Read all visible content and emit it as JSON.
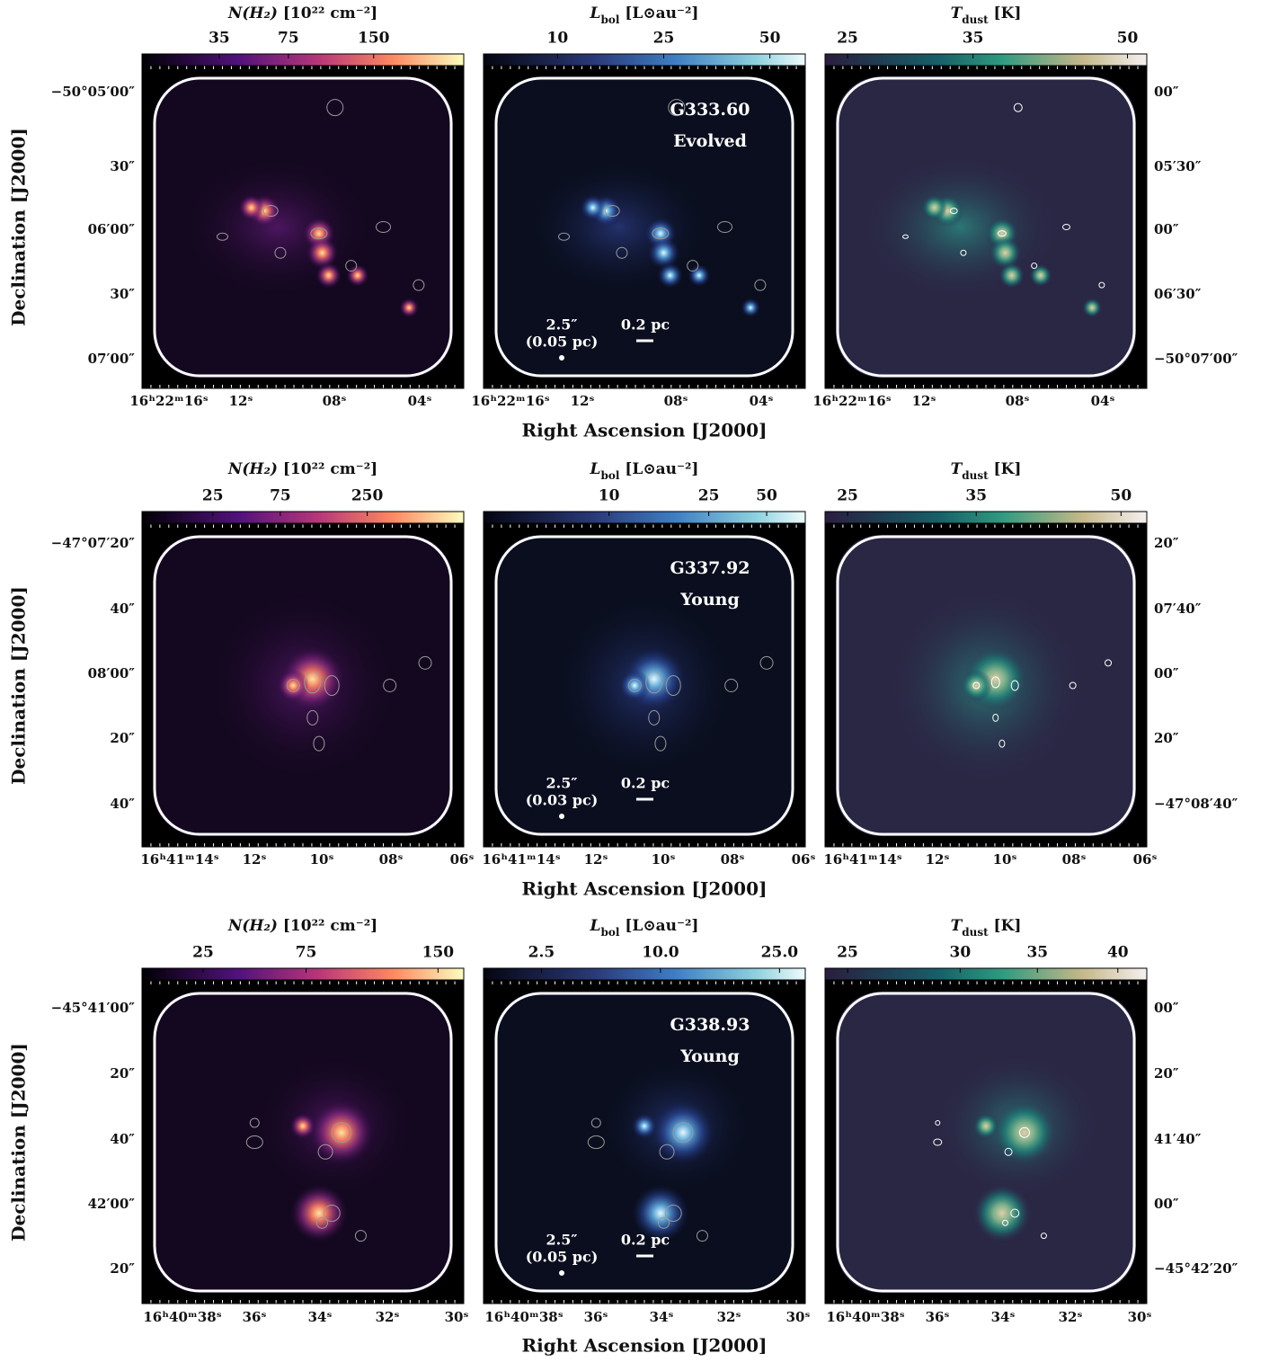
{
  "rows": [
    {
      "colorbars": [
        {
          "symbol": "N(H₂)",
          "unit": " [10²² cm⁻²]",
          "ticks": [
            "35",
            "75",
            "150"
          ]
        },
        {
          "symbol": "L",
          "sub": "bol",
          "unit": " [L⊙au⁻²]",
          "ticks": [
            "10",
            "25",
            "50"
          ]
        },
        {
          "symbol": "T",
          "sub": "dust",
          "unit": " [K]",
          "ticks": [
            "25",
            "35",
            "50"
          ]
        }
      ],
      "ra_ticks": [
        "16ʰ22ᵐ16ˢ",
        "12ˢ",
        "08ˢ",
        "04ˢ"
      ],
      "dec_left": [
        "−50°05′00″",
        "30″",
        "06′00″",
        "30″",
        "07′00″"
      ],
      "dec_right": [
        "00″",
        "05′30″",
        "00″",
        "06′30″",
        "−50°07′00″"
      ],
      "field": "G333.60",
      "stage": "Evolved",
      "scale_bar": "0.2 pc",
      "beam": "2.5″",
      "beam_size": "(0.05 pc)",
      "x_title": "Right Ascension [J2000]",
      "y_title": "Declination [J2000]"
    },
    {
      "colorbars": [
        {
          "symbol": "N(H₂)",
          "unit": " [10²² cm⁻²]",
          "ticks": [
            "25",
            "75",
            "250"
          ]
        },
        {
          "symbol": "L",
          "sub": "bol",
          "unit": " [L⊙au⁻²]",
          "ticks": [
            "10",
            "25",
            "50"
          ]
        },
        {
          "symbol": "T",
          "sub": "dust",
          "unit": " [K]",
          "ticks": [
            "25",
            "35",
            "50"
          ]
        }
      ],
      "ra_ticks": [
        "16ʰ41ᵐ14ˢ",
        "12ˢ",
        "10ˢ",
        "08ˢ",
        "06ˢ"
      ],
      "dec_left": [
        "−47°07′20″",
        "40″",
        "08′00″",
        "20″",
        "40″"
      ],
      "dec_right": [
        "20″",
        "07′40″",
        "00″",
        "20″",
        "−47°08′40″"
      ],
      "field": "G337.92",
      "stage": "Young",
      "scale_bar": "0.2 pc",
      "beam": "2.5″",
      "beam_size": "(0.03 pc)",
      "x_title": "Right Ascension [J2000]",
      "y_title": "Declination [J2000]"
    },
    {
      "colorbars": [
        {
          "symbol": "N(H₂)",
          "unit": " [10²² cm⁻²]",
          "ticks": [
            "25",
            "75",
            "150"
          ]
        },
        {
          "symbol": "L",
          "sub": "bol",
          "unit": " [L⊙au⁻²]",
          "ticks": [
            "2.5",
            "10.0",
            "25.0"
          ]
        },
        {
          "symbol": "T",
          "sub": "dust",
          "unit": " [K]",
          "ticks": [
            "25",
            "30",
            "35",
            "40"
          ]
        }
      ],
      "ra_ticks": [
        "16ʰ40ᵐ38ˢ",
        "36ˢ",
        "34ˢ",
        "32ˢ",
        "30ˢ"
      ],
      "dec_left": [
        "−45°41′00″",
        "20″",
        "40″",
        "42′00″",
        "20″"
      ],
      "dec_right": [
        "00″",
        "20″",
        "41′40″",
        "00″",
        "−45°42′20″"
      ],
      "field": "G338.93",
      "stage": "Young",
      "scale_bar": "0.2 pc",
      "beam": "2.5″",
      "beam_size": "(0.05 pc)",
      "x_title": "Right Ascension [J2000]",
      "y_title": "Declination [J2000]"
    }
  ]
}
